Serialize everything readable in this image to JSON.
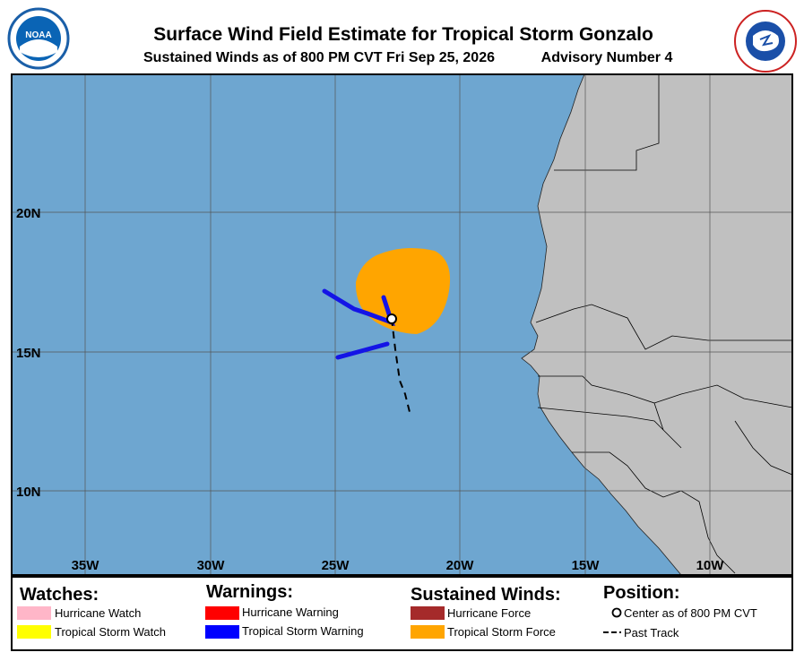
{
  "header": {
    "title": "Surface Wind Field Estimate for Tropical Storm Gonzalo",
    "subtitle": "Sustained Winds as of 800 PM CVT Fri Sep 25, 2026",
    "advisory": "Advisory Number 4",
    "logo_text": "NOAA"
  },
  "map": {
    "lon_labels": [
      "35W",
      "30W",
      "25W",
      "20W",
      "15W",
      "10W"
    ],
    "lat_labels": [
      "20N",
      "15N",
      "10N"
    ]
  },
  "legend": {
    "watches": {
      "title": "Watches:",
      "items": [
        "Hurricane Watch",
        "Tropical Storm Watch"
      ]
    },
    "warnings": {
      "title": "Warnings:",
      "items": [
        "Hurricane Warning",
        "Tropical Storm Warning"
      ]
    },
    "winds": {
      "title": "Sustained Winds:",
      "items": [
        "Hurricane Force",
        "Tropical Storm Force"
      ]
    },
    "position": {
      "title": "Position:",
      "items": [
        "Center as of 800 PM CVT",
        "Past Track"
      ]
    }
  }
}
